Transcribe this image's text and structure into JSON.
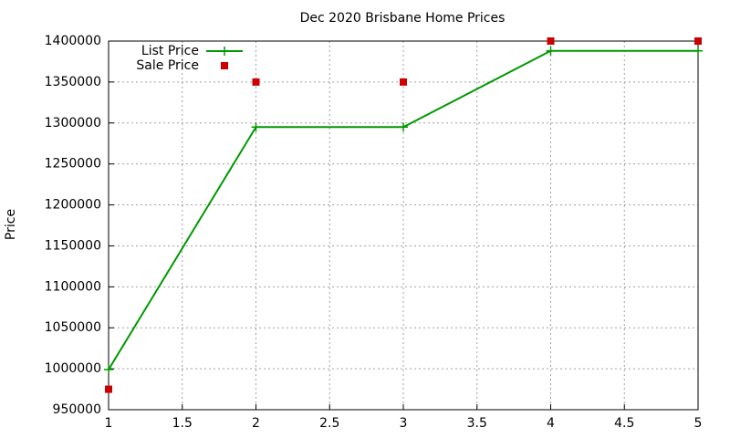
{
  "chart_data": {
    "type": "line",
    "title": "Dec 2020 Brisbane Home Prices",
    "y_label": "Price",
    "x": [
      1,
      2,
      3,
      4,
      5
    ],
    "series": [
      {
        "name": "List Price",
        "color": "#009900",
        "style": "linespoints",
        "values": [
          999000,
          1295000,
          1295000,
          1388000,
          1388000
        ]
      },
      {
        "name": "Sale Price",
        "color": "#cc0000",
        "style": "points",
        "values": [
          975000,
          1350000,
          1350000,
          1400000,
          1400000
        ]
      }
    ],
    "xlim": [
      1,
      5
    ],
    "xticks": [
      1,
      1.5,
      2,
      2.5,
      3,
      3.5,
      4,
      4.5,
      5
    ],
    "ylim": [
      950000,
      1400000
    ],
    "yticks": [
      950000,
      1000000,
      1050000,
      1100000,
      1150000,
      1200000,
      1250000,
      1300000,
      1350000,
      1400000
    ],
    "grid": true,
    "legend": "top-left"
  }
}
